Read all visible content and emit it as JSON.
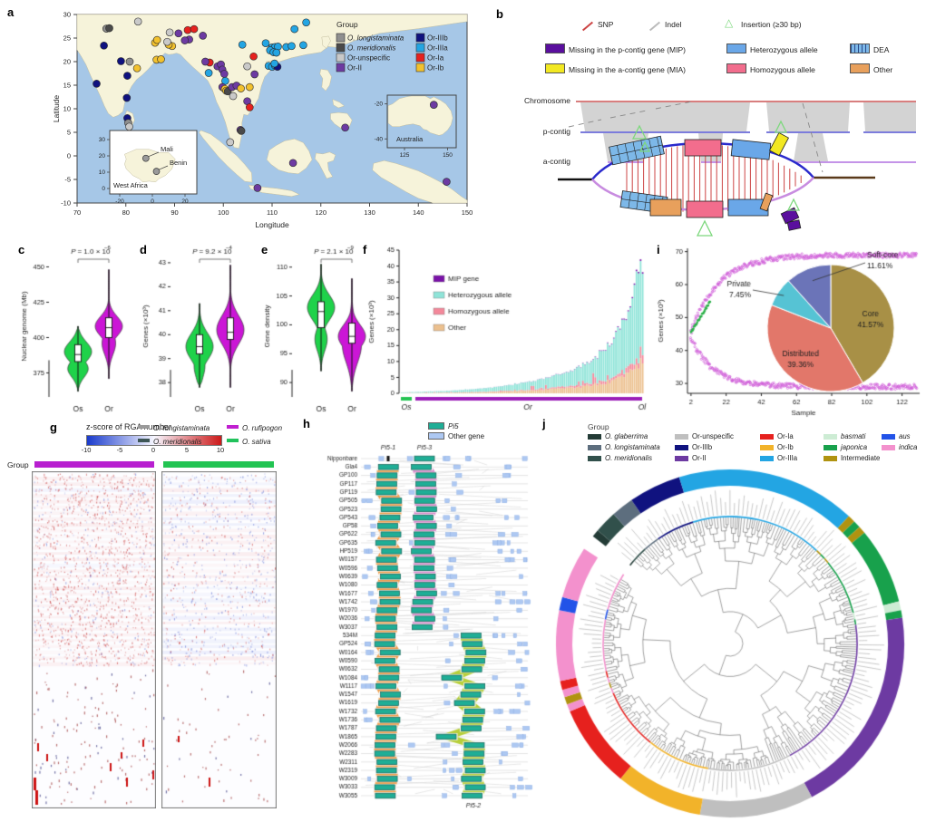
{
  "panels": {
    "a": "a",
    "b": "b",
    "c": "c",
    "d": "d",
    "e": "e",
    "f": "f",
    "g": "g",
    "h": "h",
    "i": "i",
    "j": "j"
  },
  "map": {
    "xlabel": "Longitude",
    "ylabel": "Latitude",
    "lon_ticks": [
      70,
      80,
      90,
      100,
      110,
      120,
      130,
      140,
      150
    ],
    "lat_ticks": [
      -10,
      -5,
      0,
      5,
      10,
      15,
      20,
      25,
      30
    ],
    "legend_title": "Group",
    "groups": [
      {
        "label": "O. longistaminata",
        "color": "#8f8f8f",
        "italic": true
      },
      {
        "label": "O. meridionalis",
        "color": "#4a4a4a",
        "italic": true
      },
      {
        "label": "Or-unspecific",
        "color": "#c9c9c9",
        "italic": false
      },
      {
        "label": "Or-II",
        "color": "#6d3aa2",
        "italic": false
      },
      {
        "label": "Or-IIIb",
        "color": "#10127f",
        "italic": false
      },
      {
        "label": "Or-IIIa",
        "color": "#23a5e3",
        "italic": false
      },
      {
        "label": "Or-Ia",
        "color": "#e6211e",
        "italic": false
      },
      {
        "label": "Or-Ib",
        "color": "#f2c12e",
        "italic": false
      }
    ],
    "inset_wa": {
      "title": "West Africa",
      "pt1": "Mali",
      "pt2": "Benin",
      "xticks": [
        -20,
        0,
        20
      ],
      "yticks": [
        0,
        10,
        20,
        30
      ]
    },
    "inset_au": {
      "title": "Australia",
      "xticks": [
        125,
        150
      ],
      "yticks": [
        -20,
        -40
      ]
    }
  },
  "panel_b": {
    "tracks": [
      "Chromosome",
      "p-contig",
      "a-contig"
    ],
    "legend_line": [
      {
        "label": "SNP",
        "color": "#cc4444"
      },
      {
        "label": "Indel",
        "color": "#bbbbbb"
      },
      {
        "label": "Insertion (≥30 bp)",
        "color": "#7dd87d"
      }
    ],
    "legend_box": [
      {
        "label": "Missing in the p-contig gene (MIP)",
        "color": "#5a0f9e"
      },
      {
        "label": "Heterozygous allele",
        "color": "#6aa7e8"
      },
      {
        "label": "DEA",
        "color": "hatch"
      },
      {
        "label": "Missing in the a-contig gene (MIA)",
        "color": "#f2e822"
      },
      {
        "label": "Homozygous allele",
        "color": "#f26d8d"
      },
      {
        "label": "Other",
        "color": "#e8a05c"
      }
    ]
  },
  "pi5": {
    "legend": [
      {
        "label": "Pi5",
        "color": "#1fae96",
        "italic": true
      },
      {
        "label": "Other gene",
        "color": "#adc8f2",
        "italic": false
      }
    ],
    "headers": [
      "Pi5-1",
      "Pi5-3"
    ],
    "footer": "Pi5-2",
    "names": [
      "Nipponbare",
      "Gla4",
      "GP100",
      "GP117",
      "GP119",
      "GP505",
      "GP523",
      "GP543",
      "GP58",
      "GP622",
      "GP635",
      "HP519",
      "W0157",
      "W0596",
      "W0639",
      "W1080",
      "W1677",
      "W1742",
      "W1970",
      "W2036",
      "W3037",
      "534M",
      "GP524",
      "W0164",
      "W0590",
      "W0632",
      "W1084",
      "W1117",
      "W1547",
      "W1619",
      "W1732",
      "W1736",
      "W1787",
      "W1865",
      "W2066",
      "W2283",
      "W2311",
      "W2319",
      "W3009",
      "W3033",
      "W3055"
    ]
  },
  "rga": {
    "title": "z-score of RGA number",
    "cbar_ticks": [
      -10,
      -5,
      0,
      5,
      10
    ],
    "species": [
      {
        "label": "O. longistaminata",
        "color": "#9a9a9a"
      },
      {
        "label": "O. meridionalis",
        "color": "#3d5656"
      },
      {
        "label": "O. rufipogon",
        "color": "#c01fd0"
      },
      {
        "label": "O. sativa",
        "color": "#21c25c"
      }
    ],
    "group_label": "Group",
    "group_bars": [
      {
        "color": "#b81fd0"
      },
      {
        "color": "#22c452"
      }
    ]
  },
  "tree": {
    "legend_title": "Group",
    "legend": [
      {
        "label": "O. glaberrima",
        "color": "#233b36",
        "italic": true
      },
      {
        "label": "O. longistaminata",
        "color": "#5d6e7e",
        "italic": true
      },
      {
        "label": "O. meridionalis",
        "color": "#31504b",
        "italic": true
      },
      {
        "label": "Or-unspecific",
        "color": "#bfbfbf",
        "italic": false
      },
      {
        "label": "Or-IIIb",
        "color": "#10127f",
        "italic": false
      },
      {
        "label": "Or-II",
        "color": "#6d3aa2",
        "italic": false
      },
      {
        "label": "Or-Ia",
        "color": "#e6211e",
        "italic": false
      },
      {
        "label": "Or-Ib",
        "color": "#f2b32a",
        "italic": false
      },
      {
        "label": "Or-IIIa",
        "color": "#23a5e3",
        "italic": false
      },
      {
        "label": "basmati",
        "color": "#cdecd4",
        "italic": true
      },
      {
        "label": "japonica",
        "color": "#18a14c",
        "italic": true
      },
      {
        "label": "Intermediate",
        "color": "#b09310",
        "italic": false
      },
      {
        "label": "aus",
        "color": "#2253e8",
        "italic": true
      },
      {
        "label": "indica",
        "color": "#f391cd",
        "italic": true
      }
    ]
  },
  "chart_data": [
    {
      "id": "map_scatter",
      "type": "scatter",
      "xlabel": "Longitude",
      "ylabel": "Latitude",
      "xlim": [
        70,
        150
      ],
      "ylim": [
        -10,
        30
      ],
      "group_names": [
        "O. longistaminata",
        "O. meridionalis",
        "Or-unspecific",
        "Or-II",
        "Or-IIIb",
        "Or-IIIa",
        "Or-Ia",
        "Or-Ib"
      ],
      "points": [
        [
          76,
          27,
          0
        ],
        [
          76.6,
          27.1,
          1
        ],
        [
          82.5,
          28.5,
          2
        ],
        [
          89,
          26.2,
          2
        ],
        [
          93,
          24.7,
          3
        ],
        [
          92.1,
          24.5,
          3
        ],
        [
          89.5,
          23.3,
          7
        ],
        [
          88.8,
          23.6,
          7
        ],
        [
          90.8,
          26,
          3
        ],
        [
          92.7,
          26.7,
          6
        ],
        [
          94,
          26.9,
          6
        ],
        [
          95.8,
          25.5,
          3
        ],
        [
          75.5,
          23.4,
          4
        ],
        [
          79,
          20.1,
          4
        ],
        [
          80.8,
          20,
          0
        ],
        [
          82.3,
          18.6,
          7
        ],
        [
          80.3,
          17,
          4
        ],
        [
          74,
          15.3,
          4
        ],
        [
          80.2,
          12.3,
          4
        ],
        [
          80.3,
          8,
          4
        ],
        [
          80.5,
          7,
          0
        ],
        [
          80.7,
          6.2,
          2
        ],
        [
          86.3,
          20.4,
          7
        ],
        [
          87.2,
          20.5,
          7
        ],
        [
          86,
          24,
          7
        ],
        [
          86.4,
          24.6,
          7
        ],
        [
          88.5,
          24.2,
          2
        ],
        [
          97.2,
          19.8,
          6
        ],
        [
          96.3,
          20,
          3
        ],
        [
          98.8,
          19,
          3
        ],
        [
          99.5,
          19.4,
          3
        ],
        [
          99.8,
          18.3,
          3
        ],
        [
          100.2,
          17.4,
          3
        ],
        [
          97,
          17.6,
          5
        ],
        [
          100.4,
          15.9,
          5
        ],
        [
          99.8,
          14.6,
          3
        ],
        [
          100.3,
          14.2,
          7
        ],
        [
          100.6,
          13.8,
          7
        ],
        [
          100.9,
          13.7,
          1
        ],
        [
          101.8,
          14.6,
          3
        ],
        [
          102.7,
          14.9,
          3
        ],
        [
          103.6,
          14.3,
          7
        ],
        [
          105.4,
          14.6,
          7
        ],
        [
          102,
          12.7,
          2
        ],
        [
          104.9,
          11.6,
          3
        ],
        [
          105.4,
          10.3,
          6
        ],
        [
          104.9,
          19,
          2
        ],
        [
          106.4,
          17.3,
          3
        ],
        [
          106.2,
          21.1,
          6
        ],
        [
          103.9,
          23.6,
          5
        ],
        [
          108.7,
          23.9,
          5
        ],
        [
          110,
          23,
          5
        ],
        [
          110.6,
          23.1,
          5
        ],
        [
          111.2,
          23.2,
          5
        ],
        [
          109.6,
          22.4,
          5
        ],
        [
          110.3,
          22,
          5
        ],
        [
          110.9,
          21.9,
          5
        ],
        [
          112.9,
          23.1,
          5
        ],
        [
          114,
          23.3,
          5
        ],
        [
          116.4,
          23.5,
          5
        ],
        [
          117,
          28.3,
          5
        ],
        [
          114.6,
          26.9,
          5
        ],
        [
          109.3,
          19.1,
          5
        ],
        [
          110,
          18.9,
          5
        ],
        [
          110.6,
          19.2,
          5
        ],
        [
          111.1,
          18.9,
          4
        ],
        [
          110.5,
          19.6,
          5
        ],
        [
          103.5,
          5.5,
          3
        ],
        [
          103.7,
          5.3,
          1
        ],
        [
          101.4,
          2.9,
          2
        ],
        [
          107,
          -6.8,
          3
        ],
        [
          114.3,
          -1.5,
          3
        ],
        [
          125,
          6,
          3
        ],
        [
          145.8,
          -5.5,
          3
        ]
      ]
    },
    {
      "id": "violin_c",
      "type": "violin",
      "title_base": "P = 1.0 × 10",
      "title_exp": "−6",
      "ylabel": "Nuclear genome (Mb)",
      "yticks": [
        375,
        400,
        425,
        450
      ],
      "ylim": [
        358,
        458
      ],
      "categories": [
        "Os",
        "Or"
      ],
      "colors": [
        "#1fd24a",
        "#cb16d6"
      ],
      "stats": [
        {
          "min": 362,
          "q1": 383,
          "med": 388,
          "q3": 395,
          "max": 408,
          "bulges": [
            [
              390,
              7,
              1
            ],
            [
              378,
              6,
              0.75
            ]
          ]
        },
        {
          "min": 371,
          "q1": 400,
          "med": 407,
          "q3": 414,
          "max": 448,
          "bulges": [
            [
              408,
              7,
              1
            ],
            [
              396,
              8,
              0.5
            ]
          ]
        }
      ]
    },
    {
      "id": "violin_d",
      "type": "violin",
      "title_base": "P = 9.2 × 10",
      "title_exp": "−4",
      "ylabel": "Genes (×10³)",
      "yticks": [
        38,
        39,
        40,
        41,
        42,
        43
      ],
      "ylim": [
        37.4,
        43.3
      ],
      "categories": [
        "Os",
        "Or"
      ],
      "colors": [
        "#1fd24a",
        "#cb16d6"
      ],
      "stats": [
        {
          "min": 37.8,
          "q1": 39.2,
          "med": 39.5,
          "q3": 40,
          "max": 41.3,
          "bulges": [
            [
              39.5,
              0.55,
              1
            ],
            [
              38.7,
              0.5,
              0.4
            ]
          ]
        },
        {
          "min": 37.8,
          "q1": 39.8,
          "med": 40.1,
          "q3": 40.7,
          "max": 42.9,
          "bulges": [
            [
              40.2,
              0.6,
              1
            ]
          ]
        }
      ]
    },
    {
      "id": "violin_e",
      "type": "violin",
      "title_base": "P = 2.1 × 10",
      "title_exp": "−9",
      "ylabel": "Gene density",
      "yticks": [
        90,
        95,
        100,
        105,
        110
      ],
      "ylim": [
        87.5,
        112
      ],
      "categories": [
        "Os",
        "Or"
      ],
      "colors": [
        "#1fd24a",
        "#cb16d6"
      ],
      "stats": [
        {
          "min": 92,
          "q1": 99.5,
          "med": 102.3,
          "q3": 104,
          "max": 110.5,
          "bulges": [
            [
              103,
              2.2,
              1
            ],
            [
              97.5,
              2,
              0.45
            ]
          ]
        },
        {
          "min": 88.5,
          "q1": 96.8,
          "med": 98,
          "q3": 100.3,
          "max": 108,
          "bulges": [
            [
              98,
              2,
              1
            ],
            [
              96.5,
              3,
              0.7
            ]
          ]
        }
      ]
    },
    {
      "id": "bars_f",
      "type": "bar",
      "stacked": true,
      "n_bars": 118,
      "ylabel": "Genes (×10³)",
      "yticks": [
        0,
        5,
        10,
        15,
        20,
        25,
        30,
        35,
        40,
        45
      ],
      "ylim": [
        0,
        45
      ],
      "series": [
        {
          "name": "MIP gene",
          "color": "#7a12a8"
        },
        {
          "name": "Heterozygous allele",
          "color": "#8fe4d8"
        },
        {
          "name": "Homozygous allele",
          "color": "#f4889a"
        },
        {
          "name": "Other",
          "color": "#ecc08e"
        }
      ],
      "total_profile": [
        [
          0,
          0.3
        ],
        [
          0.2,
          0.8
        ],
        [
          0.4,
          2
        ],
        [
          0.55,
          4
        ],
        [
          0.7,
          7
        ],
        [
          0.8,
          11
        ],
        [
          0.88,
          17
        ],
        [
          0.94,
          26
        ],
        [
          0.97,
          36
        ],
        [
          1,
          41
        ]
      ],
      "strip_labels": [
        "Os",
        "Or",
        "Ol"
      ],
      "strip_colors": [
        "#22c452",
        "#9b1fb8"
      ]
    },
    {
      "id": "pan_i",
      "type": "line",
      "xlabel": "Sample",
      "ylabel": "Genes (×10³)",
      "xticks": [
        2,
        22,
        42,
        62,
        82,
        102,
        122
      ],
      "yticks": [
        30,
        40,
        50,
        60,
        70
      ],
      "xlim": [
        0,
        132
      ],
      "ylim": [
        27,
        71
      ],
      "pan_curve": {
        "y_at_2": 46,
        "y_at_130": 69,
        "decay": 16,
        "color": "#d05fd8"
      },
      "core_curve": {
        "y_at_2": 43.5,
        "y_at_130": 29,
        "decay": 13,
        "color": "#d05fd8"
      },
      "green_segment": {
        "x0": 2,
        "x1": 13,
        "y0": 45.5,
        "y1": 55,
        "color": "#2db04a"
      }
    },
    {
      "id": "pie_i",
      "type": "pie",
      "slices": [
        {
          "label": "Core",
          "pct": 41.57,
          "color": "#a89046"
        },
        {
          "label": "Distributed",
          "pct": 39.36,
          "color": "#e2776a"
        },
        {
          "label": "Private",
          "pct": 7.45,
          "color": "#56c3d4"
        },
        {
          "label": "Soft-core",
          "pct": 11.61,
          "color": "#6b74b8"
        }
      ]
    },
    {
      "id": "rga_heatmap",
      "type": "heatmap",
      "colorbar_range": [
        -10,
        10
      ],
      "description": "two sparse z-score panels; left under O. rufipogon group, right under O. sativa group"
    },
    {
      "id": "tree_ring",
      "type": "pie",
      "ring": true,
      "segments": [
        {
          "group": "O. glaberrima",
          "color": "#233b36",
          "a0": -52,
          "a1": -49.5
        },
        {
          "group": "O. meridionalis",
          "color": "#31504b",
          "a0": -49.5,
          "a1": -42
        },
        {
          "group": "O. longistaminata",
          "color": "#5d6e7e",
          "a0": -42,
          "a1": -34.5
        },
        {
          "group": "Or-IIIb",
          "color": "#10127f",
          "a0": -34.5,
          "a1": -17
        },
        {
          "group": "Or-IIIa",
          "color": "#23a5e3",
          "a0": -17,
          "a1": 43
        },
        {
          "group": "Intermediate",
          "color": "#b09310",
          "a0": 43,
          "a1": 45.5
        },
        {
          "group": "japonica",
          "color": "#18a14c",
          "a0": 45.5,
          "a1": 48
        },
        {
          "group": "Intermediate",
          "color": "#b09310",
          "a0": 48,
          "a1": 50.5
        },
        {
          "group": "japonica",
          "color": "#18a14c",
          "a0": 50.5,
          "a1": 76
        },
        {
          "group": "basmati",
          "color": "#cdecd4",
          "a0": 76,
          "a1": 79
        },
        {
          "group": "japonica",
          "color": "#18a14c",
          "a0": 79,
          "a1": 81.5
        },
        {
          "group": "Or-II",
          "color": "#6d3aa2",
          "a0": 81.5,
          "a1": 152
        },
        {
          "group": "Or-unspecific",
          "color": "#bfbfbf",
          "a0": 152,
          "a1": 190
        },
        {
          "group": "Or-Ib",
          "color": "#f2b32a",
          "a0": 190,
          "a1": 219
        },
        {
          "group": "Or-Ia",
          "color": "#e6211e",
          "a0": 219,
          "a1": 247
        },
        {
          "group": "indica",
          "color": "#f391cd",
          "a0": 247,
          "a1": 249.5
        },
        {
          "group": "Intermediate",
          "color": "#b09310",
          "a0": 249.5,
          "a1": 252
        },
        {
          "group": "indica",
          "color": "#f391cd",
          "a0": 252,
          "a1": 254.5
        },
        {
          "group": "Or-Ia",
          "color": "#e6211e",
          "a0": 254.5,
          "a1": 257.5
        },
        {
          "group": "indica",
          "color": "#f391cd",
          "a0": 257.5,
          "a1": 281
        },
        {
          "group": "aus",
          "color": "#2253e8",
          "a0": 281,
          "a1": 285.5
        },
        {
          "group": "indica",
          "color": "#f391cd",
          "a0": 285.5,
          "a1": 303
        }
      ]
    }
  ]
}
